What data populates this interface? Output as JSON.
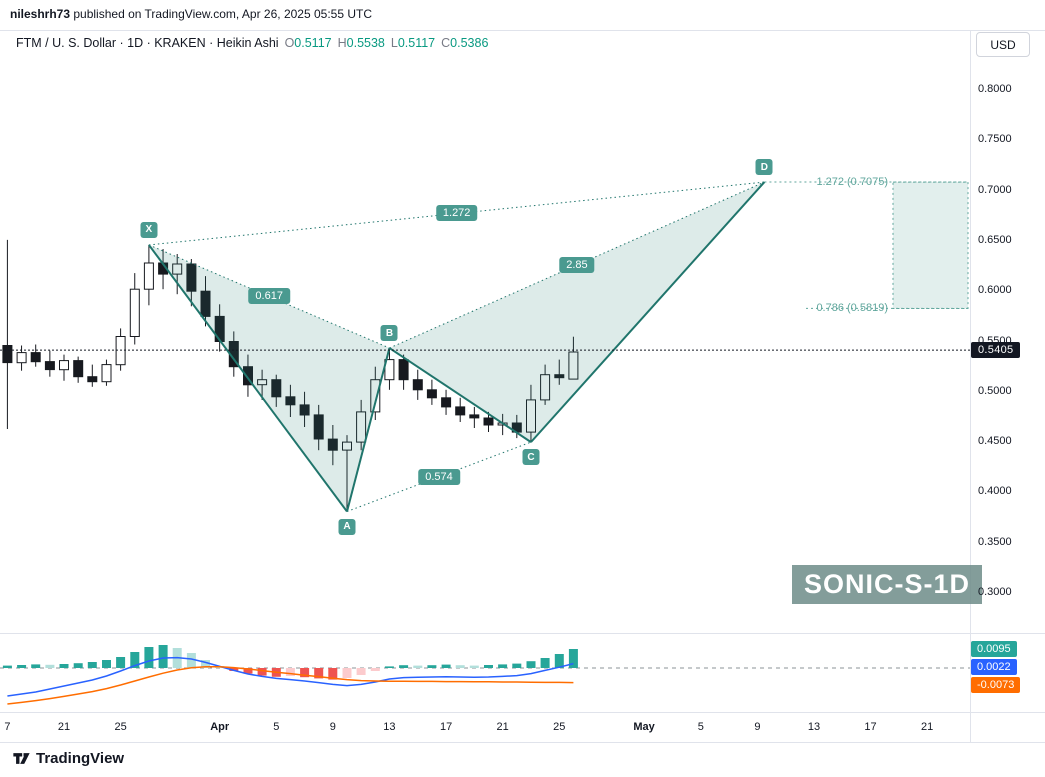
{
  "publication": {
    "author": "nileshrh73",
    "text": " published on TradingView.com, Apr 26, 2025 05:55 UTC"
  },
  "header": {
    "symbol_line": "FTM / U. S. Dollar · 1D · KRAKEN · Heikin Ashi",
    "ohlc": [
      {
        "k": "O",
        "v": "0.5117"
      },
      {
        "k": "H",
        "v": "0.5538"
      },
      {
        "k": "L",
        "v": "0.5117"
      },
      {
        "k": "C",
        "v": "0.5386"
      }
    ],
    "currency_button": "USD"
  },
  "watermark": "SONIC-S-1D",
  "logo_text": "TradingView",
  "price_line": {
    "label": "0.5405",
    "value": 0.5405
  },
  "indicator_badges": [
    {
      "label": "0.0095",
      "color": "#26a69a"
    },
    {
      "label": "0.0022",
      "color": "#2962ff"
    },
    {
      "label": "-0.0073",
      "color": "#ff6d00"
    }
  ],
  "colors": {
    "pattern_line": "#20756c",
    "pattern_fill": "rgba(42,133,119,0.16)",
    "pattern_badge": "#4a9a90",
    "prz": "#5fa69c",
    "prz_fill": "rgba(95,166,156,0.18)",
    "candle_up_fill": "#ffffff",
    "candle_down_fill": "#17191f",
    "candle_border": "#17191f",
    "price_line": "#131722",
    "hist_up": "#26a69a",
    "hist_up_weak": "#b2dfdb",
    "hist_down": "#ef5350",
    "hist_down_weak": "#fccbcd",
    "macd_line": "#2962ff",
    "signal_line": "#ff6d00",
    "zero_line": "#8b9397",
    "separator": "#e0e3eb"
  },
  "chart_data": {
    "type": "candlestick",
    "symbol": "FTM / U. S. Dollar",
    "exchange": "KRAKEN",
    "interval": "1D",
    "style": "Heikin Ashi",
    "current_price": 0.5405,
    "last_bar": {
      "open": 0.5117,
      "high": 0.5538,
      "low": 0.5117,
      "close": 0.5386
    },
    "price_axis_labels": [
      "0.8000",
      "0.7500",
      "0.7000",
      "0.6500",
      "0.6000",
      "0.5500",
      "0.5000",
      "0.4500",
      "0.4000",
      "0.3500",
      "0.3000"
    ],
    "price_range": [
      0.3,
      0.8
    ],
    "time_axis_ticks": [
      {
        "label": "7",
        "i": 0
      },
      {
        "label": "21",
        "i": 4
      },
      {
        "label": "25",
        "i": 8
      },
      {
        "label": "Apr",
        "i": 15,
        "major": true
      },
      {
        "label": "5",
        "i": 19
      },
      {
        "label": "9",
        "i": 23
      },
      {
        "label": "13",
        "i": 27
      },
      {
        "label": "17",
        "i": 31
      },
      {
        "label": "21",
        "i": 35
      },
      {
        "label": "25",
        "i": 39
      },
      {
        "label": "May",
        "i": 45,
        "major": true
      },
      {
        "label": "5",
        "i": 49
      },
      {
        "label": "9",
        "i": 53
      },
      {
        "label": "13",
        "i": 57
      },
      {
        "label": "17",
        "i": 61
      },
      {
        "label": "21",
        "i": 65
      }
    ],
    "candles": [
      [
        0.545,
        0.65,
        0.462,
        0.528
      ],
      [
        0.528,
        0.545,
        0.52,
        0.538
      ],
      [
        0.538,
        0.546,
        0.524,
        0.529
      ],
      [
        0.529,
        0.54,
        0.514,
        0.521
      ],
      [
        0.521,
        0.536,
        0.51,
        0.53
      ],
      [
        0.53,
        0.534,
        0.508,
        0.514
      ],
      [
        0.514,
        0.526,
        0.504,
        0.509
      ],
      [
        0.509,
        0.531,
        0.505,
        0.526
      ],
      [
        0.526,
        0.562,
        0.52,
        0.554
      ],
      [
        0.554,
        0.617,
        0.546,
        0.601
      ],
      [
        0.601,
        0.645,
        0.585,
        0.627
      ],
      [
        0.627,
        0.641,
        0.601,
        0.616
      ],
      [
        0.616,
        0.636,
        0.596,
        0.626
      ],
      [
        0.626,
        0.631,
        0.584,
        0.599
      ],
      [
        0.599,
        0.614,
        0.564,
        0.574
      ],
      [
        0.574,
        0.586,
        0.539,
        0.549
      ],
      [
        0.549,
        0.559,
        0.514,
        0.524
      ],
      [
        0.524,
        0.536,
        0.494,
        0.506
      ],
      [
        0.506,
        0.521,
        0.491,
        0.511
      ],
      [
        0.511,
        0.516,
        0.484,
        0.494
      ],
      [
        0.494,
        0.506,
        0.474,
        0.486
      ],
      [
        0.486,
        0.499,
        0.464,
        0.476
      ],
      [
        0.476,
        0.486,
        0.441,
        0.452
      ],
      [
        0.452,
        0.466,
        0.426,
        0.441
      ],
      [
        0.441,
        0.456,
        0.38,
        0.449
      ],
      [
        0.449,
        0.491,
        0.441,
        0.479
      ],
      [
        0.479,
        0.524,
        0.471,
        0.511
      ],
      [
        0.511,
        0.5425,
        0.501,
        0.531
      ],
      [
        0.531,
        0.536,
        0.501,
        0.511
      ],
      [
        0.511,
        0.521,
        0.491,
        0.501
      ],
      [
        0.501,
        0.511,
        0.486,
        0.493
      ],
      [
        0.493,
        0.501,
        0.476,
        0.484
      ],
      [
        0.484,
        0.493,
        0.469,
        0.476
      ],
      [
        0.476,
        0.484,
        0.463,
        0.473
      ],
      [
        0.473,
        0.479,
        0.459,
        0.466
      ],
      [
        0.466,
        0.477,
        0.456,
        0.468
      ],
      [
        0.468,
        0.476,
        0.453,
        0.459
      ],
      [
        0.459,
        0.506,
        0.449,
        0.491
      ],
      [
        0.491,
        0.526,
        0.486,
        0.516
      ],
      [
        0.516,
        0.531,
        0.506,
        0.513
      ],
      [
        0.5117,
        0.5538,
        0.5117,
        0.5386
      ]
    ],
    "pattern": {
      "type": "XABCD harmonic (bearish)",
      "points": [
        {
          "name": "X",
          "i": 10,
          "price": 0.645,
          "label_side": "above"
        },
        {
          "name": "A",
          "i": 24,
          "price": 0.38,
          "label_side": "below"
        },
        {
          "name": "B",
          "i": 27,
          "price": 0.5425,
          "label_side": "above"
        },
        {
          "name": "C",
          "i": 37,
          "price": 0.449,
          "label_side": "below"
        },
        {
          "name": "D",
          "i": 53.5,
          "price": 0.7075,
          "label_side": "above"
        }
      ],
      "ratios": [
        {
          "label": "0.617",
          "from": "X",
          "to": "B"
        },
        {
          "label": "1.272",
          "from": "X",
          "to": "D"
        },
        {
          "label": "0.574",
          "from": "A",
          "to": "C"
        },
        {
          "label": "2.85",
          "from": "B",
          "to": "D"
        }
      ],
      "prz": {
        "levels": [
          {
            "text": "1.272 (0.7075)",
            "price": 0.7075
          },
          {
            "text": "0.786 (0.5819)",
            "price": 0.5819
          }
        ]
      }
    },
    "indicator": {
      "name": "MACD",
      "last_values": {
        "histogram": 0.0095,
        "macd": 0.0022,
        "signal": -0.0073
      },
      "histogram": [
        0.0012,
        0.0015,
        0.0018,
        0.0016,
        0.002,
        0.0024,
        0.003,
        0.004,
        0.0055,
        0.008,
        0.0105,
        0.0115,
        0.01,
        0.0075,
        0.004,
        0.001,
        -0.0015,
        -0.0028,
        -0.0038,
        -0.0044,
        -0.004,
        -0.0046,
        -0.0052,
        -0.0058,
        -0.005,
        -0.0035,
        -0.0015,
        0.0008,
        0.0014,
        0.0012,
        0.0014,
        0.0017,
        0.0014,
        0.0012,
        0.0015,
        0.0018,
        0.0022,
        0.0034,
        0.005,
        0.007,
        0.0095
      ],
      "macd": [
        -0.014,
        -0.013,
        -0.012,
        -0.0105,
        -0.009,
        -0.0075,
        -0.006,
        -0.004,
        -0.0015,
        0.0012,
        0.0035,
        0.005,
        0.0052,
        0.0045,
        0.0028,
        0.0008,
        -0.0012,
        -0.003,
        -0.0042,
        -0.0052,
        -0.0058,
        -0.0065,
        -0.0073,
        -0.0082,
        -0.0088,
        -0.0082,
        -0.007,
        -0.0055,
        -0.0048,
        -0.0046,
        -0.0045,
        -0.0044,
        -0.0045,
        -0.0046,
        -0.0045,
        -0.0042,
        -0.0038,
        -0.0028,
        -0.0012,
        0.0004,
        0.0022
      ],
      "signal": [
        -0.018,
        -0.0172,
        -0.0163,
        -0.0153,
        -0.0142,
        -0.013,
        -0.0118,
        -0.0103,
        -0.0085,
        -0.0065,
        -0.0045,
        -0.0026,
        -0.001,
        0.0001,
        0.0006,
        0.0006,
        0.0002,
        -0.0005,
        -0.0013,
        -0.0021,
        -0.0028,
        -0.0036,
        -0.0043,
        -0.0051,
        -0.0058,
        -0.0063,
        -0.0065,
        -0.0066,
        -0.0066,
        -0.0067,
        -0.0067,
        -0.0068,
        -0.0068,
        -0.0069,
        -0.0069,
        -0.007,
        -0.007,
        -0.0071,
        -0.0072,
        -0.0072,
        -0.0073
      ]
    }
  }
}
